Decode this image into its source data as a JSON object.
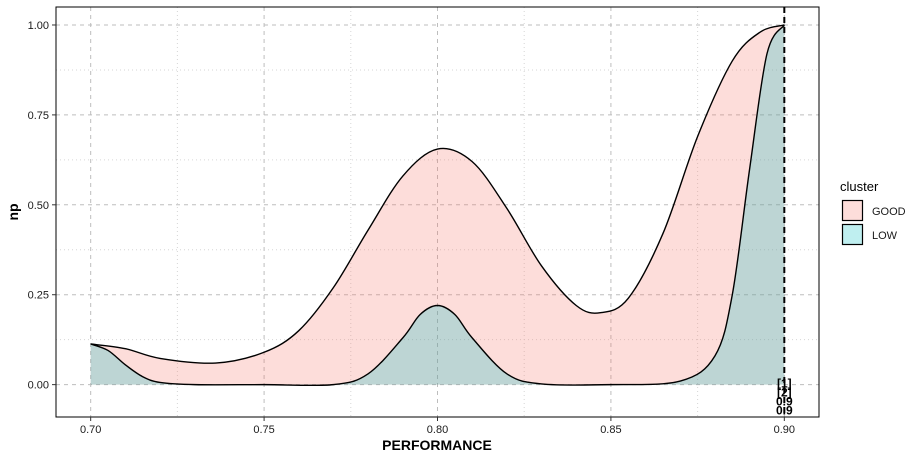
{
  "chart_data": {
    "type": "area",
    "xlabel": "PERFORMANCE",
    "ylabel": "np",
    "xlim": [
      0.69,
      0.91
    ],
    "ylim": [
      -0.09,
      1.05
    ],
    "x_ticks": [
      0.7,
      0.75,
      0.8,
      0.85,
      0.9
    ],
    "x_tick_labels": [
      "0.70",
      "0.75",
      "0.80",
      "0.85",
      "0.90"
    ],
    "y_ticks": [
      0.0,
      0.25,
      0.5,
      0.75,
      1.0
    ],
    "y_tick_labels": [
      "0.00",
      "0.25",
      "0.50",
      "0.75",
      "1.00"
    ],
    "grid": true,
    "legend": {
      "title": "cluster",
      "position": "right",
      "entries": [
        {
          "label": "GOOD",
          "color": "#f8766d"
        },
        {
          "label": "LOW",
          "color": "#00bfc4"
        }
      ]
    },
    "series": [
      {
        "name": "GOOD",
        "color": "#f8766d",
        "x": [
          0.7,
          0.71,
          0.72,
          0.736,
          0.75,
          0.76,
          0.77,
          0.78,
          0.79,
          0.8,
          0.81,
          0.82,
          0.83,
          0.84,
          0.847,
          0.855,
          0.865,
          0.875,
          0.885,
          0.893,
          0.9
        ],
        "y": [
          0.113,
          0.1,
          0.073,
          0.06,
          0.09,
          0.15,
          0.27,
          0.43,
          0.58,
          0.655,
          0.62,
          0.49,
          0.33,
          0.22,
          0.2,
          0.24,
          0.42,
          0.69,
          0.9,
          0.98,
          1.0
        ]
      },
      {
        "name": "LOW",
        "color": "#00bfc4",
        "x": [
          0.7,
          0.705,
          0.71,
          0.715,
          0.72,
          0.73,
          0.75,
          0.77,
          0.78,
          0.79,
          0.795,
          0.8,
          0.805,
          0.81,
          0.82,
          0.83,
          0.85,
          0.87,
          0.88,
          0.885,
          0.89,
          0.895,
          0.9
        ],
        "y": [
          0.113,
          0.095,
          0.055,
          0.022,
          0.006,
          0.0,
          0.0,
          0.0,
          0.03,
          0.13,
          0.195,
          0.22,
          0.195,
          0.13,
          0.03,
          0.002,
          0.0,
          0.01,
          0.08,
          0.25,
          0.6,
          0.92,
          1.0
        ]
      }
    ],
    "vline": {
      "x": 0.9,
      "style": "dashed",
      "labels": [
        "[1]",
        "[2]",
        "0.9",
        "0.9"
      ]
    }
  }
}
